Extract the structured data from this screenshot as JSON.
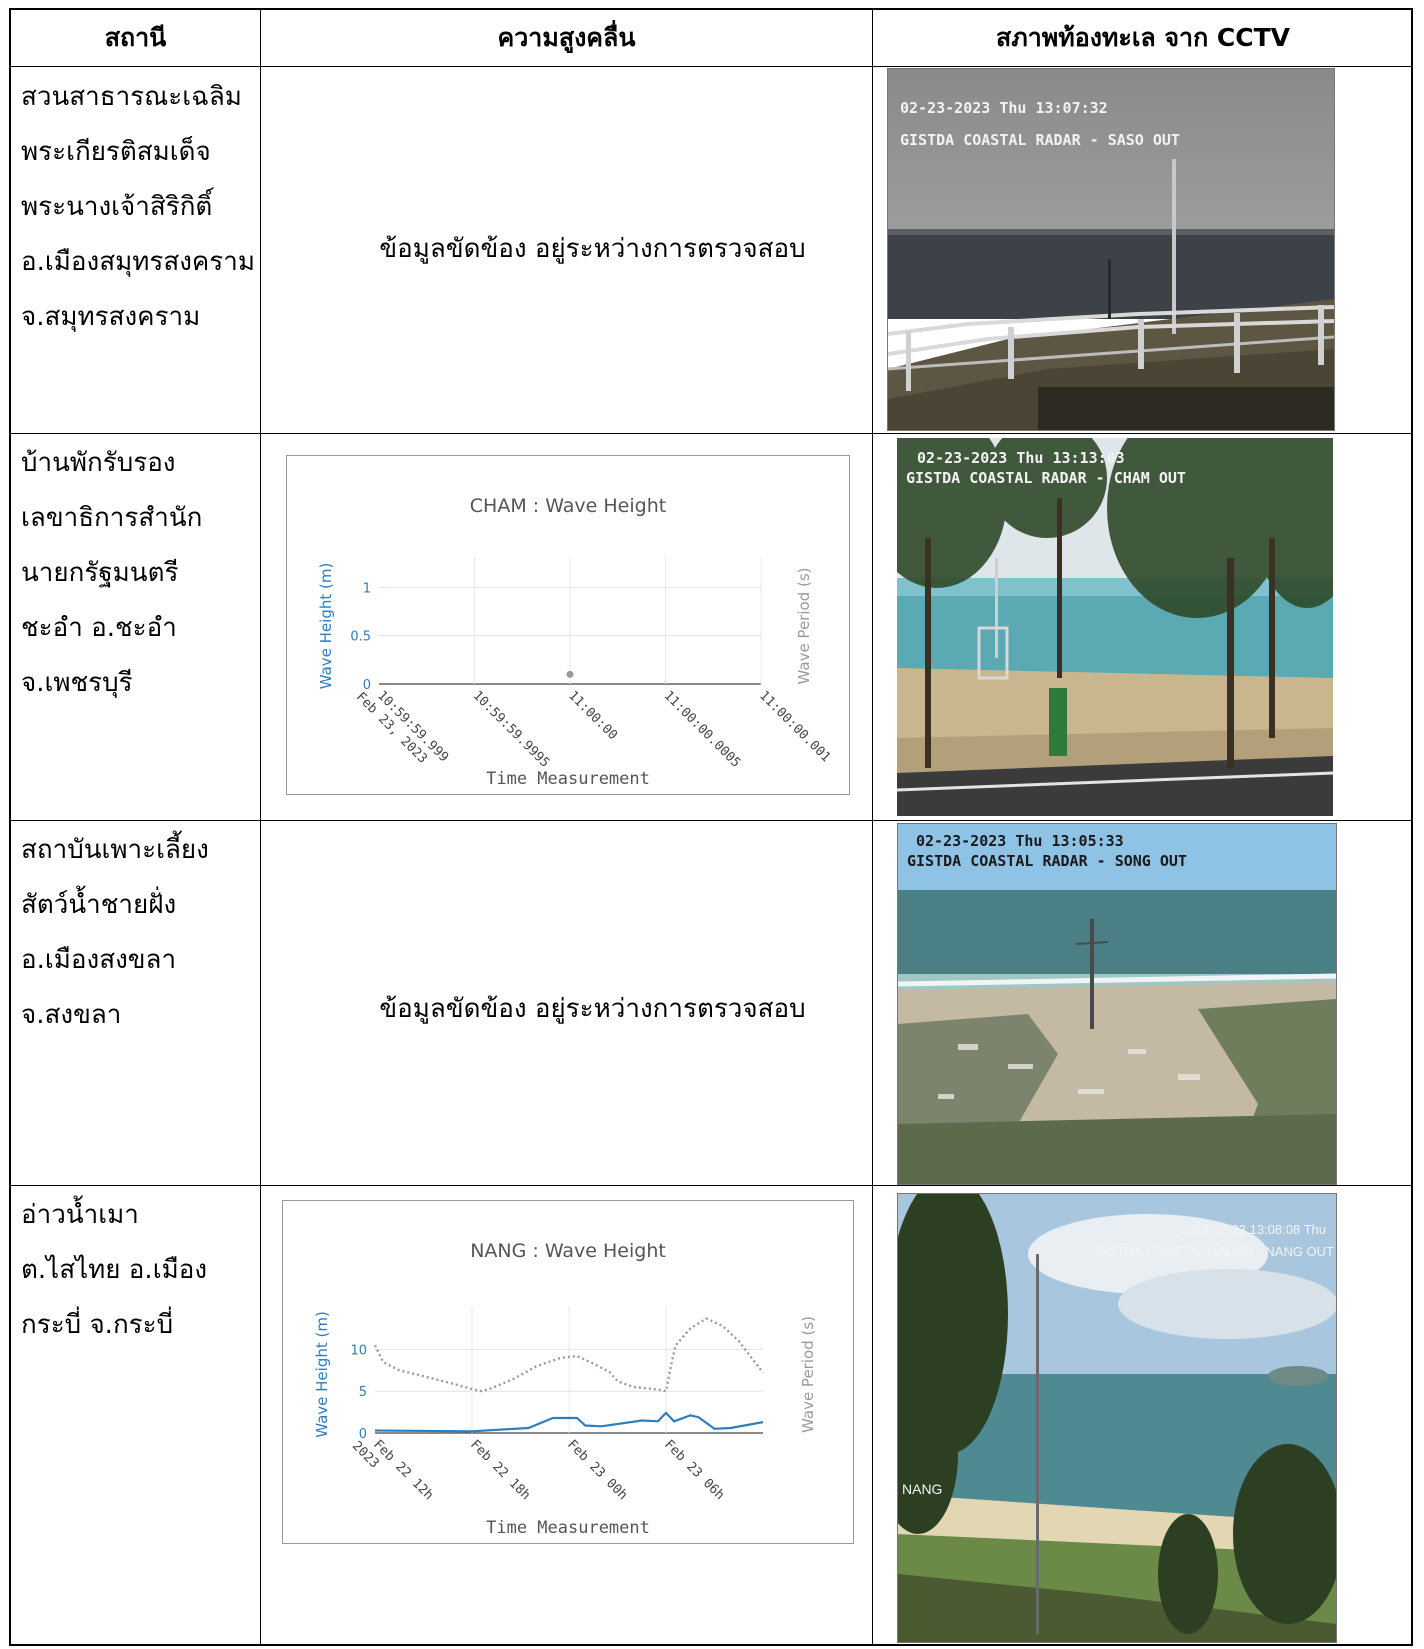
{
  "headers": {
    "station": "สถานี",
    "wave_height": "ความสูงคลื่น",
    "sea_condition": "สภาพท้องทะเล จาก CCTV"
  },
  "no_data_text": "ข้อมูลขัดข้อง อยู่ระหว่างการตรวจสอบ",
  "rows": [
    {
      "station_lines": [
        "สวนสาธารณะเฉลิม",
        "พระเกียรติสมเด็จ",
        "พระนางเจ้าสิริกิติ์",
        "อ.เมืองสมุทรสงคราม",
        "จ.สมุทรสงคราม"
      ],
      "cctv": {
        "timestamp": "02-23-2023 Thu 13:07:32",
        "caption": "GISTDA COASTAL RADAR - SASO OUT"
      }
    },
    {
      "station_lines": [
        "บ้านพักรับรอง",
        "เลขาธิการสำนัก",
        "นายกรัฐมนตรี",
        "ชะอำ อ.ชะอำ",
        "จ.เพชรบุรี"
      ],
      "cctv": {
        "timestamp": "02-23-2023 Thu 13:13:03",
        "caption": "GISTDA COASTAL RADAR - CHAM OUT"
      }
    },
    {
      "station_lines": [
        "สถาบันเพาะเลี้ยง",
        "สัตว์น้ำชายฝั่ง",
        "อ.เมืองสงขลา",
        "จ.สงขลา"
      ],
      "cctv": {
        "timestamp": "02-23-2023 Thu 13:05:33",
        "caption": "GISTDA COASTAL RADAR - SONG OUT"
      }
    },
    {
      "station_lines": [
        "อ่าวน้ำเมา",
        "ต.ไสไทย  อ.เมือง",
        "กระบี่ จ.กระบี่"
      ],
      "cctv": {
        "timestamp": "2023-02-23 13:08:08 Thu",
        "caption": "GISTDA COASTAL RADAR - NANG OUT",
        "site_label": "NANG"
      }
    }
  ],
  "chart_data": [
    {
      "type": "scatter",
      "title": "CHAM : Wave Height",
      "xlabel": "Time Measurement",
      "ylabel": "Wave Height (m)",
      "y2label": "Wave Period (s)",
      "x_ticks": [
        "10:59:59.999\nFeb 23, 2023",
        "10:59:59.9995",
        "11:00:00",
        "11:00:00.0005",
        "11:00:00.001"
      ],
      "y_ticks": [
        "0",
        "0.5",
        "1"
      ],
      "ylim": [
        0,
        1.2
      ],
      "points": [
        {
          "x": "11:00:00",
          "y": 0.1
        }
      ],
      "grid": true,
      "colors": {
        "height": "#2e7dbd",
        "period": "#9a9a9a"
      }
    },
    {
      "type": "line",
      "title": "NANG : Wave Height",
      "xlabel": "Time Measurement",
      "ylabel": "Wave Height (m)",
      "y2label": "Wave Period (s)",
      "x_ticks": [
        "Feb 22 12h\n2023",
        "Feb 22 18h",
        "Feb 23 00h",
        "Feb 23 06h"
      ],
      "x_range_hours": [
        0,
        24
      ],
      "y_ticks": [
        "0",
        "5",
        "10"
      ],
      "ylim": [
        0,
        14
      ],
      "grid": true,
      "series": [
        {
          "name": "Wave Height (m)",
          "style": "solid",
          "color": "#2e7dbd",
          "points": [
            [
              0,
              0.3
            ],
            [
              6,
              0.2
            ],
            [
              9.5,
              0.6
            ],
            [
              11,
              1.8
            ],
            [
              12.5,
              1.8
            ],
            [
              13,
              0.9
            ],
            [
              14,
              0.8
            ],
            [
              16.5,
              1.5
            ],
            [
              17.5,
              1.4
            ],
            [
              18,
              2.4
            ],
            [
              18.5,
              1.4
            ],
            [
              19.5,
              2.1
            ],
            [
              20,
              1.9
            ],
            [
              21,
              0.5
            ],
            [
              22,
              0.6
            ],
            [
              24,
              1.3
            ]
          ]
        },
        {
          "name": "Wave Period (s)",
          "style": "dotted",
          "color": "#9a9a9a",
          "points": [
            [
              0,
              10.5
            ],
            [
              0.5,
              8.5
            ],
            [
              1.5,
              7.5
            ],
            [
              3,
              6.8
            ],
            [
              5,
              5.8
            ],
            [
              6.5,
              5.0
            ],
            [
              7,
              5.2
            ],
            [
              8.5,
              6.4
            ],
            [
              10,
              8.0
            ],
            [
              11.5,
              9.0
            ],
            [
              12.5,
              9.2
            ],
            [
              13.5,
              8.3
            ],
            [
              14.5,
              7.3
            ],
            [
              15,
              6.2
            ],
            [
              16,
              5.5
            ],
            [
              17.5,
              5.2
            ],
            [
              18,
              5.0
            ],
            [
              18.3,
              8.0
            ],
            [
              18.6,
              10.5
            ],
            [
              19.5,
              12.5
            ],
            [
              20.5,
              13.7
            ],
            [
              21.5,
              12.8
            ],
            [
              22.5,
              11.0
            ],
            [
              24,
              7.2
            ]
          ]
        }
      ]
    }
  ]
}
